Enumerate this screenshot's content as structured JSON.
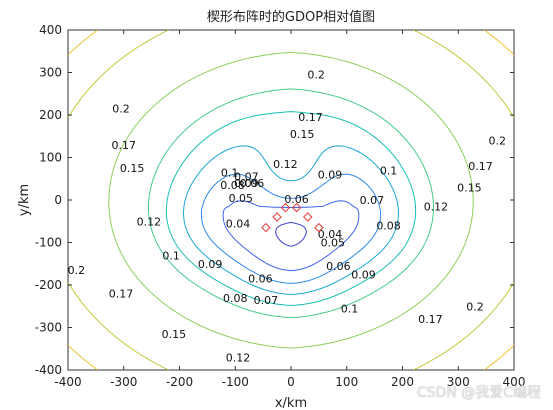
{
  "chart_data": {
    "type": "contour",
    "title": "楔形布阵时的GDOP相对值图",
    "xlabel": "x/km",
    "ylabel": "y/km",
    "xlim": [
      -400,
      400
    ],
    "ylim": [
      -400,
      400
    ],
    "xticks": [
      -400,
      -300,
      -200,
      -100,
      0,
      100,
      200,
      300,
      400
    ],
    "yticks": [
      -400,
      -300,
      -200,
      -100,
      0,
      100,
      200,
      300,
      400
    ],
    "contour_levels": [
      0.04,
      0.05,
      0.06,
      0.07,
      0.08,
      0.09,
      0.1,
      0.12,
      0.15,
      0.17,
      0.2
    ],
    "contour_label_values": [
      {
        "text": "0.2",
        "x": 45,
        "y": 295
      },
      {
        "text": "0.2",
        "x": -305,
        "y": 215
      },
      {
        "text": "0.2",
        "x": 370,
        "y": 140
      },
      {
        "text": "0.2",
        "x": -385,
        "y": -165
      },
      {
        "text": "0.2",
        "x": 330,
        "y": -250
      },
      {
        "text": "0.17",
        "x": 35,
        "y": 195
      },
      {
        "text": "0.17",
        "x": -300,
        "y": 130
      },
      {
        "text": "0.17",
        "x": 340,
        "y": 80
      },
      {
        "text": "0.17",
        "x": -305,
        "y": -220
      },
      {
        "text": "0.17",
        "x": 250,
        "y": -280
      },
      {
        "text": "0.15",
        "x": 20,
        "y": 155
      },
      {
        "text": "0.15",
        "x": -285,
        "y": 75
      },
      {
        "text": "0.15",
        "x": 320,
        "y": 30
      },
      {
        "text": "0.15",
        "x": -210,
        "y": -315
      },
      {
        "text": "0.12",
        "x": -10,
        "y": 85
      },
      {
        "text": "0.12",
        "x": 260,
        "y": -15
      },
      {
        "text": "0.12",
        "x": -255,
        "y": -50
      },
      {
        "text": "0.12",
        "x": -95,
        "y": -370
      },
      {
        "text": "0.1",
        "x": -110,
        "y": 65
      },
      {
        "text": "0.1",
        "x": 175,
        "y": 70
      },
      {
        "text": "0.1",
        "x": -215,
        "y": -130
      },
      {
        "text": "0.1",
        "x": 105,
        "y": -255
      },
      {
        "text": "0.09",
        "x": -80,
        "y": 40
      },
      {
        "text": "0.09",
        "x": 70,
        "y": 60
      },
      {
        "text": "0.09",
        "x": -145,
        "y": -150
      },
      {
        "text": "0.09",
        "x": 130,
        "y": -175
      },
      {
        "text": "0.08",
        "x": -105,
        "y": 35
      },
      {
        "text": "0.08",
        "x": 175,
        "y": -60
      },
      {
        "text": "0.08",
        "x": -100,
        "y": -230
      },
      {
        "text": "0.07",
        "x": -80,
        "y": 55
      },
      {
        "text": "0.07",
        "x": 145,
        "y": 0
      },
      {
        "text": "0.07",
        "x": -45,
        "y": -235
      },
      {
        "text": "0.06",
        "x": -70,
        "y": 40
      },
      {
        "text": "0.06",
        "x": 10,
        "y": 2
      },
      {
        "text": "0.06",
        "x": -55,
        "y": -185
      },
      {
        "text": "0.06",
        "x": 85,
        "y": -155
      },
      {
        "text": "0.05",
        "x": -90,
        "y": 5
      },
      {
        "text": "0.05",
        "x": 75,
        "y": -100
      },
      {
        "text": "0.04",
        "x": -95,
        "y": -55
      },
      {
        "text": "0.04",
        "x": 70,
        "y": -80
      }
    ],
    "stations": [
      {
        "x": -45,
        "y": -65
      },
      {
        "x": -25,
        "y": -40
      },
      {
        "x": -10,
        "y": -18
      },
      {
        "x": 10,
        "y": -18
      },
      {
        "x": 30,
        "y": -40
      },
      {
        "x": 50,
        "y": -65
      }
    ],
    "colormap": [
      "#2a1f9e",
      "#3a3fd2",
      "#3c62f0",
      "#2a88e6",
      "#1aa7d6",
      "#17bfb4",
      "#45cc8a",
      "#8ccf5b",
      "#c6c83b",
      "#f0c233",
      "#f7f21a"
    ],
    "station_marker_color": "#e23b3b",
    "grid": false
  },
  "watermark": "CSDN @我爱C编程"
}
